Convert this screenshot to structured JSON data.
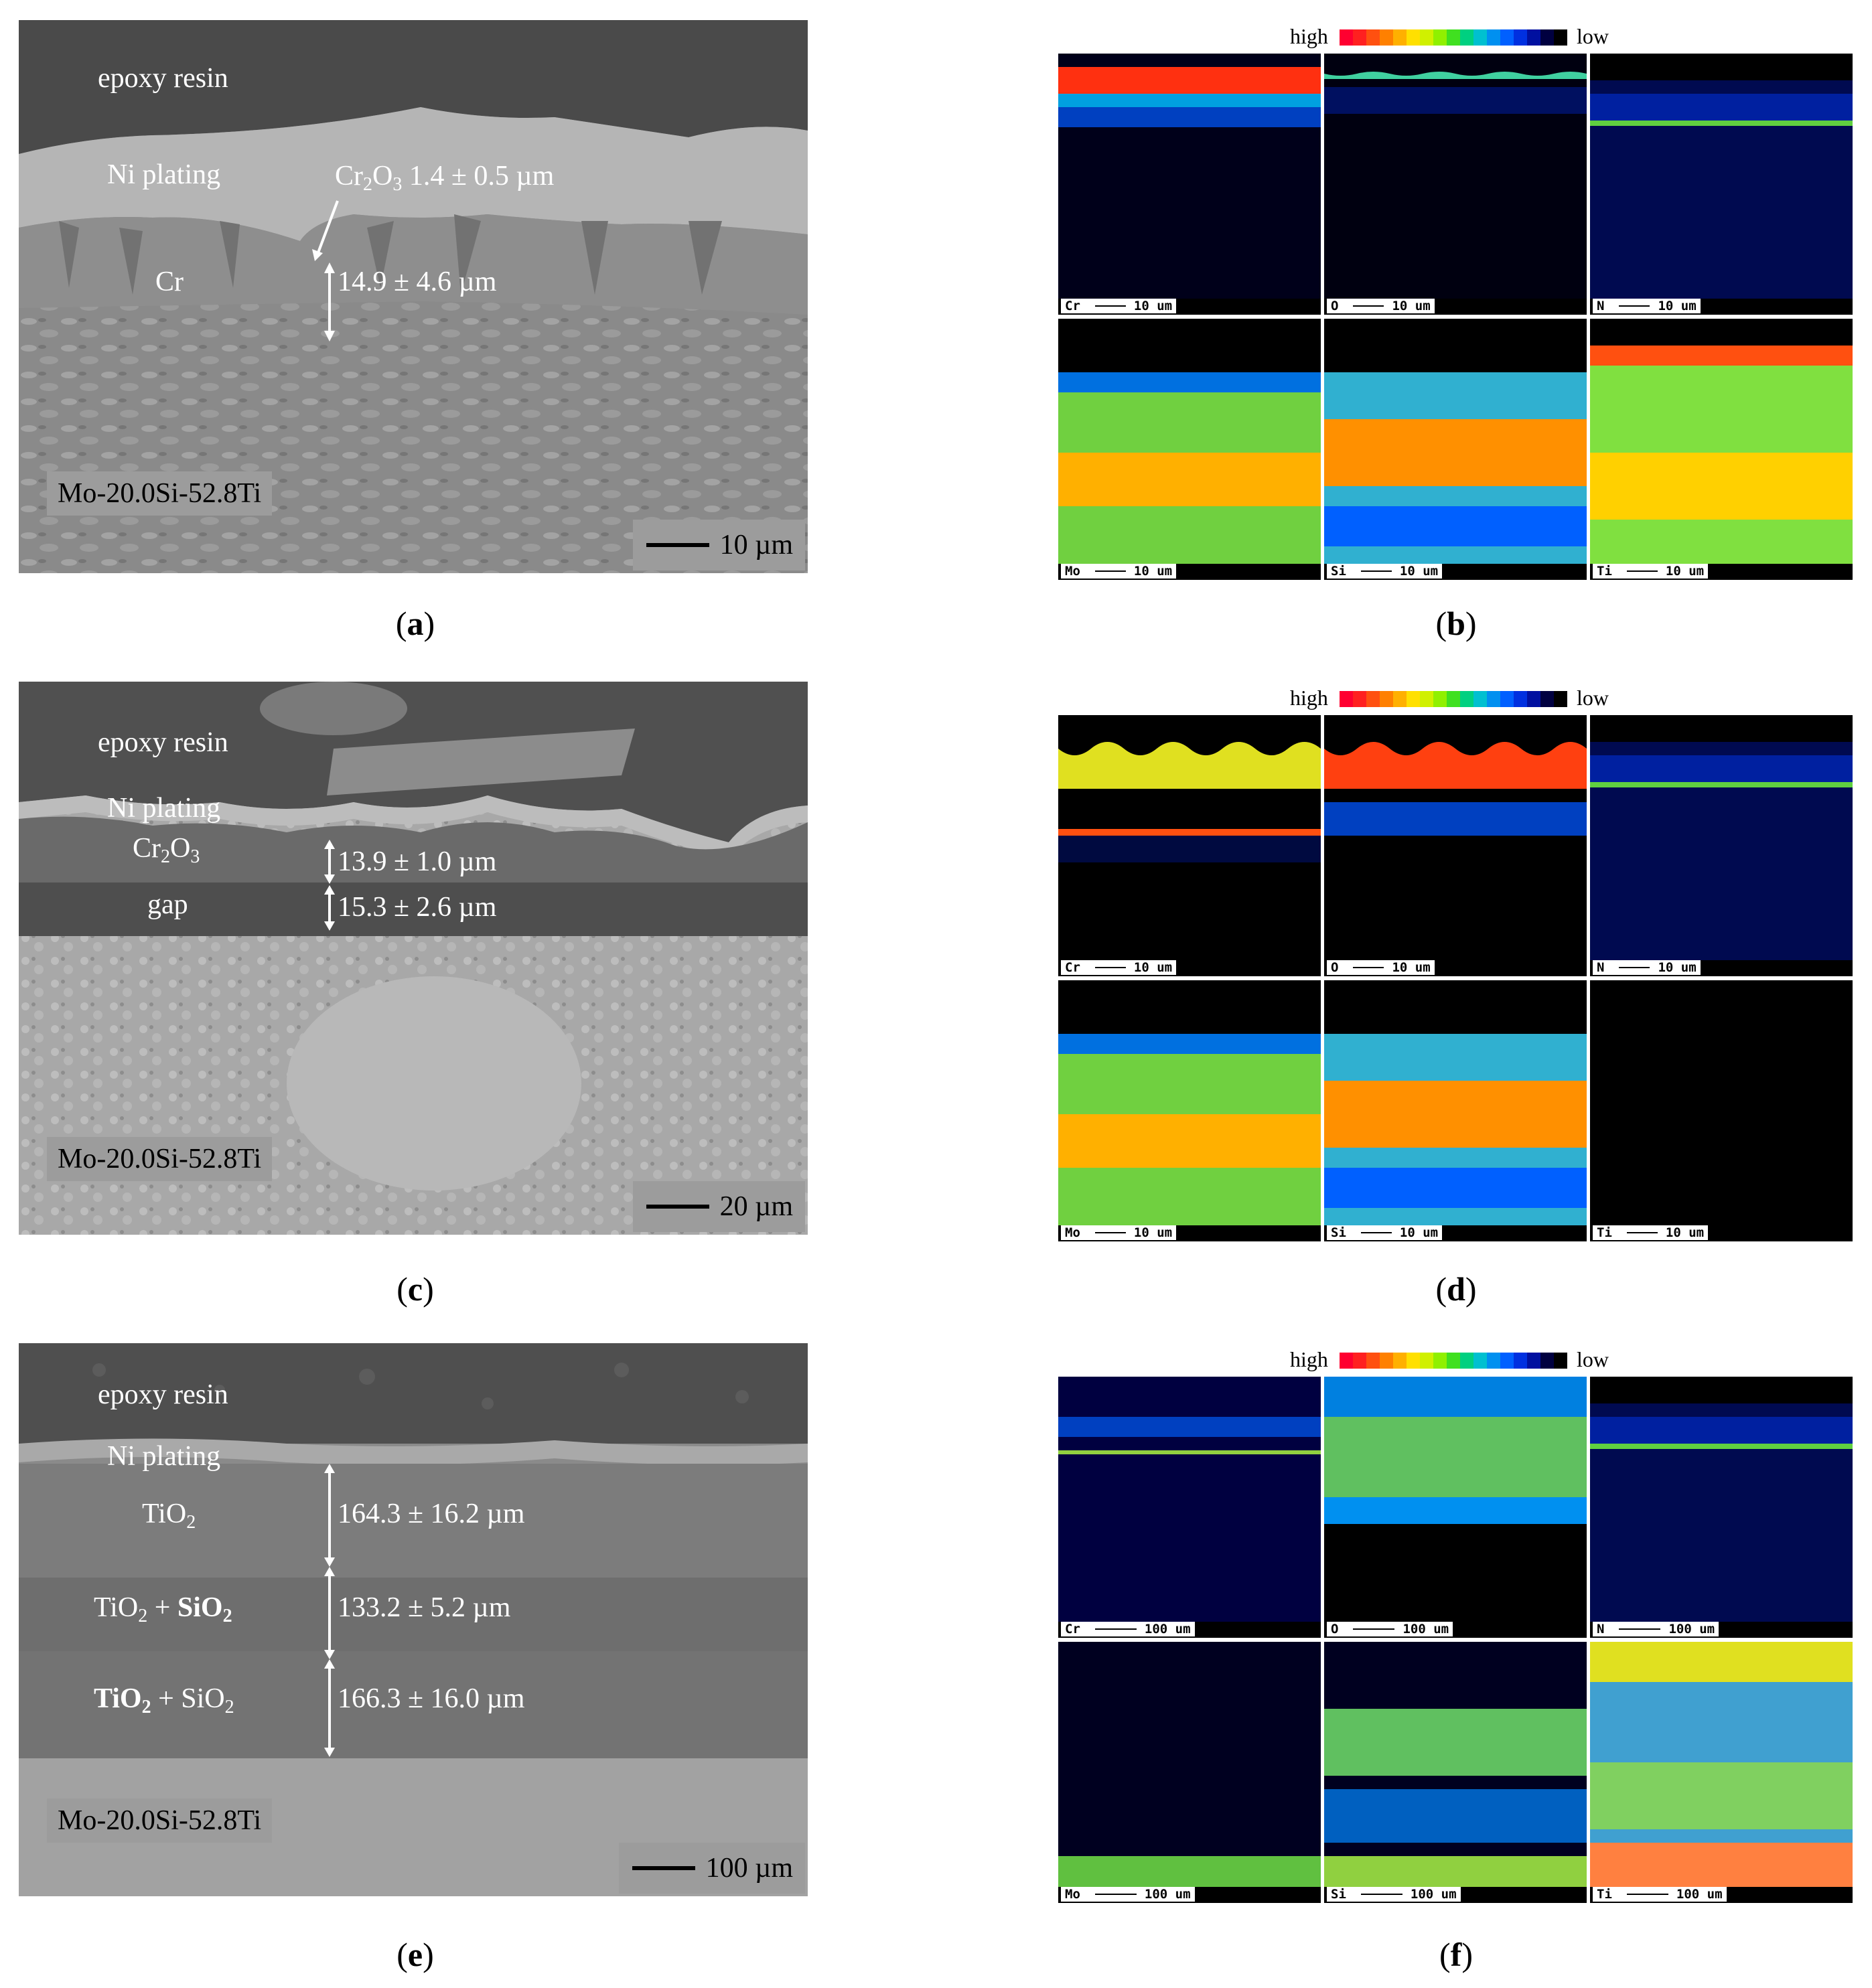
{
  "panels": {
    "a": {
      "caption": "a",
      "labels": {
        "epoxy": "epoxy resin",
        "ni": "Ni plating",
        "cr": "Cr",
        "cr2o3_pre": "Cr",
        "cr2o3_sub1": "2",
        "cr2o3_mid": "O",
        "cr2o3_sub2": "3",
        "cr2o3_val": " 1.4 ± 0.5 µm",
        "thick": "14.9 ± 4.6 µm",
        "alloy": "Mo-20.0Si-52.8Ti",
        "scale": "10 µm"
      }
    },
    "c": {
      "caption": "c",
      "labels": {
        "epoxy": "epoxy resin",
        "ni": "Ni plating",
        "cr2o3_pre": "Cr",
        "cr2o3_sub1": "2",
        "cr2o3_mid": "O",
        "cr2o3_sub2": "3",
        "gap": "gap",
        "thick1": "13.9 ± 1.0 µm",
        "thick2": "15.3 ± 2.6 µm",
        "alloy": "Mo-20.0Si-52.8Ti",
        "scale": "20 µm"
      }
    },
    "e": {
      "caption": "e",
      "labels": {
        "epoxy": "epoxy resin",
        "ni": "Ni plating",
        "tio2": "TiO",
        "sub2": "2",
        "plus": " + ",
        "sio2": "SiO",
        "thick1": "164.3 ± 16.2 µm",
        "thick2": "133.2 ± 5.2 µm",
        "thick3": "166.3 ± 16.0 µm",
        "alloy": "Mo-20.0Si-52.8Ti",
        "scale": "100 µm"
      }
    },
    "b": {
      "caption": "b"
    },
    "d": {
      "caption": "d"
    },
    "f": {
      "caption": "f"
    }
  },
  "legend": {
    "high": "high",
    "low": "low",
    "colors": [
      "#ff0030",
      "#ff2020",
      "#ff5010",
      "#ff8000",
      "#ffb000",
      "#ffe000",
      "#d0f000",
      "#90f000",
      "#40e020",
      "#00d080",
      "#00c0d0",
      "#0090f0",
      "#0060ff",
      "#0030e0",
      "#0010a0",
      "#000040",
      "#000000"
    ]
  },
  "maps": {
    "row_small": [
      {
        "el": "Cr",
        "scale": "10 um"
      },
      {
        "el": "O",
        "scale": "10 um"
      },
      {
        "el": "N",
        "scale": "10 um"
      },
      {
        "el": "Mo",
        "scale": "10 um"
      },
      {
        "el": "Si",
        "scale": "10 um"
      },
      {
        "el": "Ti",
        "scale": "10 um"
      }
    ],
    "row_large": [
      {
        "el": "Cr",
        "scale": "100 um"
      },
      {
        "el": "O",
        "scale": "100 um"
      },
      {
        "el": "N",
        "scale": "100 um"
      },
      {
        "el": "Mo",
        "scale": "100 um"
      },
      {
        "el": "Si",
        "scale": "100 um"
      },
      {
        "el": "Ti",
        "scale": "100 um"
      }
    ]
  }
}
